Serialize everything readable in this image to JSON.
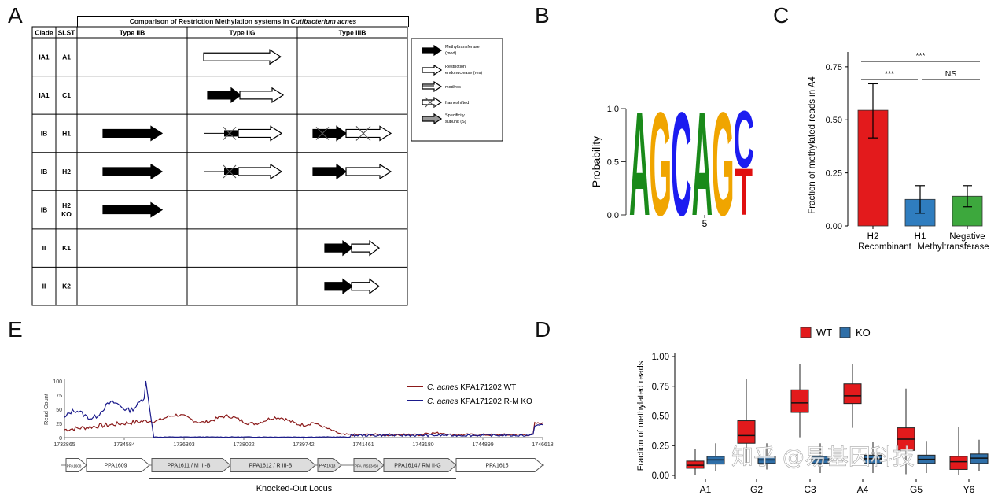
{
  "panels": {
    "A": {
      "letter": "A",
      "title_prefix": "Comparison of Restriction Methylation systems in ",
      "title_species": "Cutibacterium acnes",
      "col_headers": [
        "Clade",
        "SLST",
        "Type IIB",
        "Type IIG",
        "Type IIIB"
      ],
      "rows": [
        {
          "clade": "IA1",
          "slst": "A1"
        },
        {
          "clade": "IA1",
          "slst": "C1"
        },
        {
          "clade": "IB",
          "slst": "H1"
        },
        {
          "clade": "IB",
          "slst": "H2"
        },
        {
          "clade": "IB",
          "slst": "H2\nKO"
        },
        {
          "clade": "II",
          "slst": "K1"
        },
        {
          "clade": "II",
          "slst": "K2"
        }
      ],
      "legend": [
        {
          "text": "Methyltransferase (mod)"
        },
        {
          "text": "Restriction endonuclease (res)"
        },
        {
          "text": "mod/res"
        },
        {
          "text": "frameshifted"
        },
        {
          "text": "Specificity subunit (S)"
        }
      ]
    },
    "B": {
      "letter": "B",
      "ylabel": "Probability",
      "yticks": [
        "0.0",
        "0.5",
        "1.0"
      ],
      "xtick": "5",
      "motif": [
        {
          "letter": "A",
          "color": "#1a8a1a",
          "prob": 1.0
        },
        {
          "letter": "G",
          "color": "#f0a500",
          "prob": 1.0
        },
        {
          "letter": "C",
          "color": "#1c1cf0",
          "prob": 1.0
        },
        {
          "letter": "A",
          "color": "#1a8a1a",
          "prob": 1.0
        },
        {
          "letter": "G",
          "color": "#f0a500",
          "prob": 1.0
        },
        {
          "letter": "C",
          "color": "#1c1cf0",
          "prob": 0.55
        },
        {
          "letter": "T",
          "color": "#e01010",
          "prob": 0.45
        }
      ]
    },
    "C": {
      "letter": "C",
      "chart_data": {
        "type": "bar",
        "ylabel": "Fraction of methylated reads in A4",
        "ylim": [
          0,
          0.82
        ],
        "yticks": [
          "0.00",
          "0.25",
          "0.50",
          "0.75"
        ],
        "categories": [
          "H2",
          "H1",
          "Negative"
        ],
        "xlabel_lines": [
          "Recombinant Methyltransferase"
        ],
        "xlabel_prefix": "Recombinant",
        "xlabel_suffix": "Methyltransferase",
        "values": [
          0.545,
          0.125,
          0.14
        ],
        "errors": [
          [
            0.415,
            0.67
          ],
          [
            0.06,
            0.19
          ],
          [
            0.09,
            0.19
          ]
        ],
        "colors": [
          "#e31a1c",
          "#2f7dbf",
          "#3da83d"
        ],
        "significance": [
          {
            "label": "***",
            "from": 0,
            "to": 2,
            "y": 0.7
          },
          {
            "label": "***",
            "from": 0,
            "to": 1,
            "y": 0.61
          },
          {
            "label": "NS",
            "from": 1,
            "to": 2,
            "y": 0.61
          }
        ]
      }
    },
    "D": {
      "letter": "D",
      "chart_data": {
        "type": "box",
        "ylabel": "Fraction of methylated reads",
        "ylim": [
          0,
          1.0
        ],
        "yticks": [
          "0.00",
          "0.25",
          "0.50",
          "0.75",
          "1.00"
        ],
        "categories": [
          "A1",
          "G2",
          "C3",
          "A4",
          "G5",
          "Y6"
        ],
        "legend": [
          {
            "name": "WT",
            "color": "#e31a1c"
          },
          {
            "name": "KO",
            "color": "#2f6fa8"
          }
        ],
        "series": [
          {
            "name": "WT",
            "boxes": [
              [
                0.0,
                0.06,
                0.085,
                0.12,
                0.22
              ],
              [
                0.09,
                0.27,
                0.335,
                0.46,
                0.81
              ],
              [
                0.32,
                0.53,
                0.61,
                0.72,
                0.94
              ],
              [
                0.4,
                0.605,
                0.67,
                0.77,
                0.94
              ],
              [
                0.01,
                0.21,
                0.305,
                0.4,
                0.73
              ],
              [
                0.0,
                0.05,
                0.115,
                0.16,
                0.41
              ]
            ]
          },
          {
            "name": "KO",
            "boxes": [
              [
                0.04,
                0.095,
                0.13,
                0.16,
                0.27
              ],
              [
                0.05,
                0.1,
                0.13,
                0.16,
                0.27
              ],
              [
                0.02,
                0.1,
                0.13,
                0.16,
                0.27
              ],
              [
                0.02,
                0.1,
                0.14,
                0.17,
                0.28
              ],
              [
                0.02,
                0.1,
                0.135,
                0.17,
                0.29
              ],
              [
                0.04,
                0.1,
                0.145,
                0.18,
                0.3
              ]
            ]
          }
        ]
      },
      "watermark": "知乎 @易基因科技"
    },
    "E": {
      "letter": "E",
      "ylabel": "Read Count",
      "yticks": [
        "0",
        "25",
        "50",
        "75",
        "100"
      ],
      "coords": [
        "1732865",
        "1734584",
        "1736303",
        "1738022",
        "1739742",
        "1741461",
        "1743180",
        "1744899",
        "1746618"
      ],
      "legend": [
        {
          "species": "C. acnes",
          "strain": " KPA171202 WT",
          "color": "#8b1a1a"
        },
        {
          "species": "C. acnes",
          "strain": " KPA171202 R-M KO",
          "color": "#1a1a8b"
        }
      ],
      "genes": [
        "PPA1608",
        "PPA1609",
        "PPA1611 / M III-B",
        "PPA1612 / R III-B",
        "PPA1613",
        "PPA_RS13450",
        "PPA1614 / RM II-G",
        "PPA1615"
      ],
      "locus_label": "Knocked-Out Locus"
    }
  }
}
